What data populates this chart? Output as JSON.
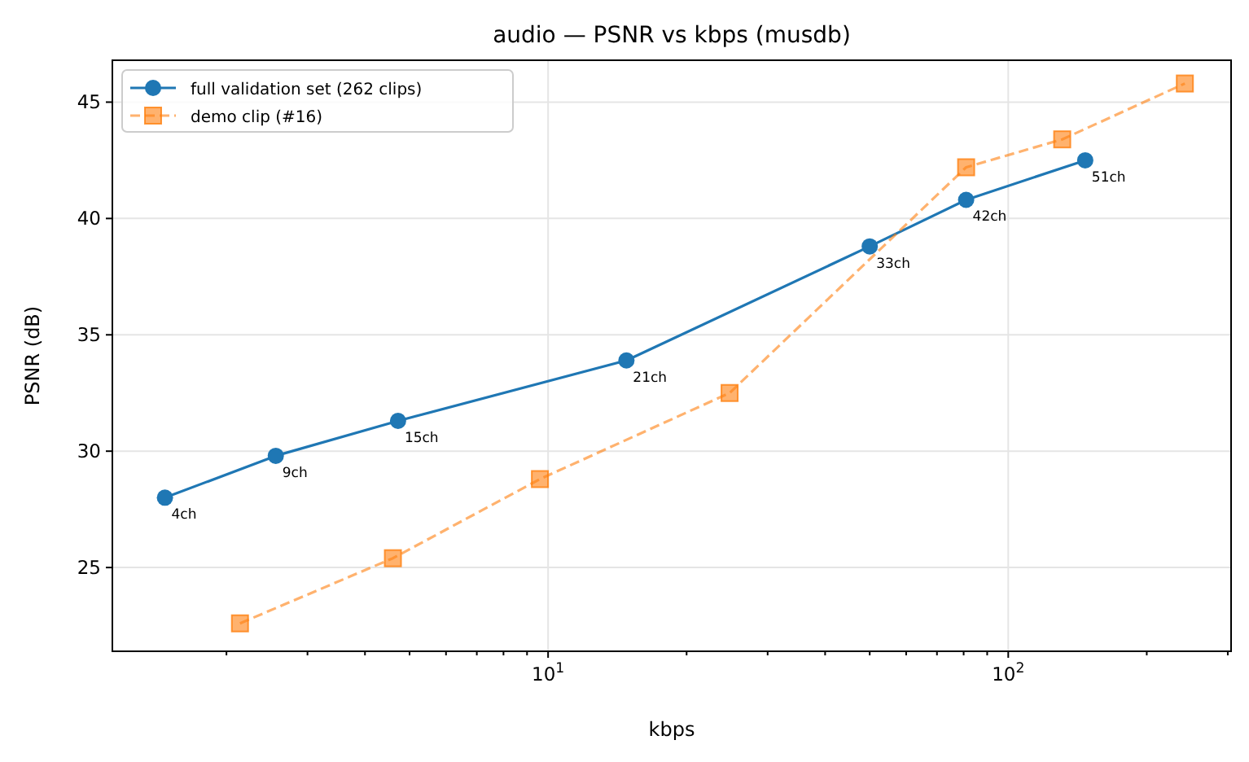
{
  "chart_data": {
    "type": "line",
    "title": "audio — PSNR vs kbps (musdb)",
    "xlabel": "kbps",
    "ylabel": "PSNR (dB)",
    "log": "x",
    "grid": true,
    "legend": "top left",
    "xlim": [
      1.13,
      305
    ],
    "ylim": [
      21.4,
      46.8
    ],
    "xticks": [
      {
        "value": 2,
        "label": null
      },
      {
        "value": 3,
        "label": null
      },
      {
        "value": 4,
        "label": null
      },
      {
        "value": 5,
        "label": null
      },
      {
        "value": 6,
        "label": null
      },
      {
        "value": 7,
        "label": null
      },
      {
        "value": 8,
        "label": null
      },
      {
        "value": 9,
        "label": null
      },
      {
        "value": 10,
        "label": "10$^{1}$"
      },
      {
        "value": 20,
        "label": null
      },
      {
        "value": 30,
        "label": null
      },
      {
        "value": 40,
        "label": null
      },
      {
        "value": 50,
        "label": null
      },
      {
        "value": 60,
        "label": null
      },
      {
        "value": 70,
        "label": null
      },
      {
        "value": 80,
        "label": null
      },
      {
        "value": 90,
        "label": null
      },
      {
        "value": 100,
        "label": "10$^{2}$"
      },
      {
        "value": 200,
        "label": null
      },
      {
        "value": 300,
        "label": null
      }
    ],
    "yticks": [
      25,
      30,
      35,
      40,
      45
    ],
    "series": [
      {
        "name": "full validation set (262 clips)",
        "color": "#1f77b4",
        "marker": "circle",
        "line_style": "solid",
        "x": [
          1.47,
          2.56,
          4.72,
          14.8,
          50,
          81,
          147
        ],
        "values": [
          28.0,
          29.8,
          31.3,
          33.9,
          38.8,
          40.8,
          42.5
        ]
      },
      {
        "name": "demo clip (#16)",
        "color": "#ff7f0e",
        "marker": "square",
        "line_style": "dashed",
        "x": [
          2.14,
          4.6,
          9.6,
          24.8,
          81,
          131,
          242
        ],
        "values": [
          22.6,
          25.4,
          28.8,
          32.5,
          42.2,
          43.4,
          45.8
        ]
      }
    ],
    "annotations": [
      {
        "text": "4ch",
        "x": 1.47,
        "y": 28.0
      },
      {
        "text": "9ch",
        "x": 2.56,
        "y": 29.8
      },
      {
        "text": "15ch",
        "x": 4.72,
        "y": 31.3
      },
      {
        "text": "21ch",
        "x": 14.8,
        "y": 33.9
      },
      {
        "text": "33ch",
        "x": 50,
        "y": 38.8
      },
      {
        "text": "42ch",
        "x": 81,
        "y": 40.8
      },
      {
        "text": "51ch",
        "x": 147,
        "y": 42.5
      }
    ]
  }
}
